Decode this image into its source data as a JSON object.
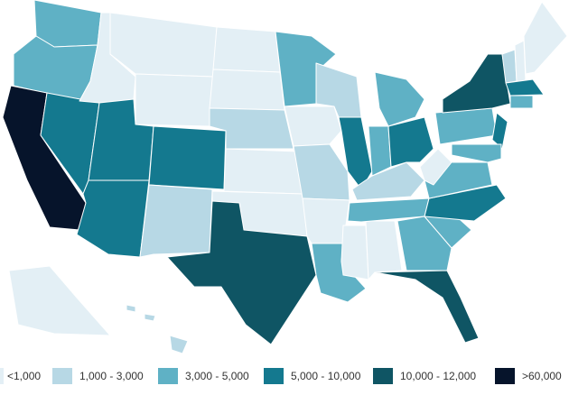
{
  "legend": [
    {
      "label": "<1,000",
      "color": "#e3eff5"
    },
    {
      "label": "1,000 - 3,000",
      "color": "#b7d8e5"
    },
    {
      "label": "3,000 - 5,000",
      "color": "#5fb1c5"
    },
    {
      "label": "5,000 - 10,000",
      "color": "#14798f"
    },
    {
      "label": "10,000 - 12,000",
      "color": "#0f5564"
    },
    {
      "label": ">60,000",
      "color": "#06142b"
    }
  ]
}
